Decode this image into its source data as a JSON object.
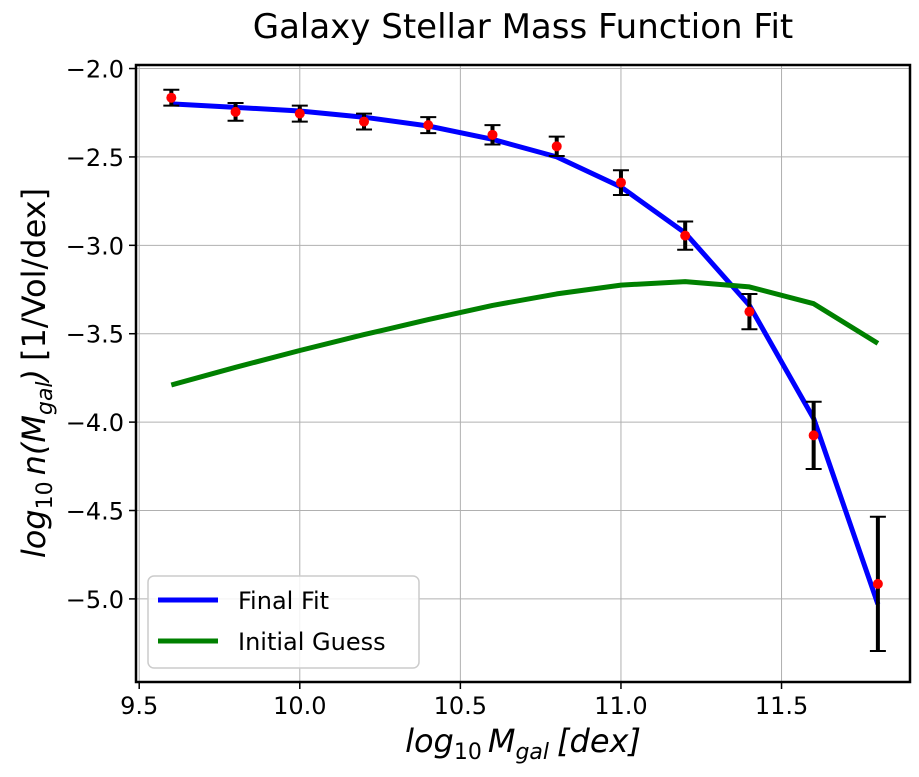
{
  "chart_data": {
    "type": "line",
    "title": "Galaxy Stellar Mass Function Fit",
    "xlabel": {
      "main": "log",
      "sub1": "10",
      "var": "M",
      "sub2": "gal",
      "unit": "[dex]"
    },
    "ylabel": {
      "main": "log",
      "sub1": "10",
      "fn": "n(M",
      "sub2": "gal",
      "close": ")",
      "unit": "[1/Vol/dex]"
    },
    "xlim": [
      9.49,
      11.9
    ],
    "ylim": [
      -5.47,
      -1.98
    ],
    "xticks": [
      9.5,
      10.0,
      10.5,
      11.0,
      11.5
    ],
    "xtick_labels": [
      "9.5",
      "10.0",
      "10.5",
      "11.0",
      "11.5"
    ],
    "yticks": [
      -2.0,
      -2.5,
      -3.0,
      -3.5,
      -4.0,
      -4.5,
      -5.0
    ],
    "ytick_labels": [
      "−2.0",
      "−2.5",
      "−3.0",
      "−3.5",
      "−4.0",
      "−4.5",
      "−5.0"
    ],
    "grid": true,
    "legend_position": "lower-left",
    "series": [
      {
        "name": "Final Fit",
        "color": "#0000ff",
        "x": [
          9.6,
          9.8,
          10.0,
          10.2,
          10.4,
          10.6,
          10.8,
          11.0,
          11.2,
          11.4,
          11.6,
          11.8
        ],
        "y": [
          -2.2,
          -2.22,
          -2.24,
          -2.275,
          -2.325,
          -2.4,
          -2.5,
          -2.67,
          -2.93,
          -3.34,
          -3.98,
          -5.03
        ]
      },
      {
        "name": "Initial Guess",
        "color": "#008000",
        "x": [
          9.6,
          9.8,
          10.0,
          10.2,
          10.4,
          10.6,
          10.8,
          11.0,
          11.2,
          11.4,
          11.6,
          11.8
        ],
        "y": [
          -3.79,
          -3.69,
          -3.595,
          -3.505,
          -3.42,
          -3.34,
          -3.275,
          -3.225,
          -3.205,
          -3.235,
          -3.33,
          -3.555
        ]
      }
    ],
    "observed": {
      "marker_color": "#ff0000",
      "errorbar_color": "#000000",
      "x": [
        9.6,
        9.8,
        10.0,
        10.2,
        10.4,
        10.6,
        10.8,
        11.0,
        11.2,
        11.4,
        11.6,
        11.8
      ],
      "y": [
        -2.165,
        -2.245,
        -2.255,
        -2.3,
        -2.32,
        -2.375,
        -2.44,
        -2.645,
        -2.945,
        -3.375,
        -4.075,
        -4.915
      ],
      "yerr": [
        0.045,
        0.05,
        0.045,
        0.045,
        0.045,
        0.055,
        0.055,
        0.07,
        0.08,
        0.1,
        0.19,
        0.38
      ]
    }
  }
}
